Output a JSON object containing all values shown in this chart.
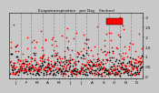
{
  "title": "Evapotranspiration   per Day   (Inches)",
  "background_color": "#c8c8c8",
  "plot_bg": "#c8c8c8",
  "grid_color": "#888888",
  "yticks": [
    0.0,
    0.05,
    0.1,
    0.15,
    0.2,
    0.25,
    0.3
  ],
  "ytick_labels": [
    "0",
    ".05",
    ".1",
    ".15",
    ".2",
    ".25",
    ".3"
  ],
  "ylim": [
    -0.01,
    0.32
  ],
  "legend_color1": "#ff0000",
  "legend_color2": "#000000",
  "dot_size": 1.5,
  "num_days": 365,
  "month_starts": [
    0,
    31,
    59,
    90,
    120,
    151,
    181,
    212,
    243,
    273,
    304,
    334,
    365
  ],
  "month_labels": [
    "J",
    "F",
    "M",
    "A",
    "M",
    "J",
    "J",
    "A",
    "S",
    "O",
    "N",
    "D"
  ]
}
